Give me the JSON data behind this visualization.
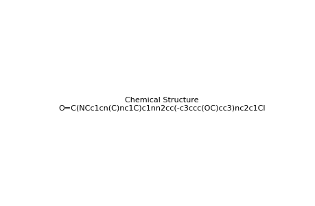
{
  "smiles": "O=C(NCc1cn(C)nc1C)c1nn2cc(-c3ccc(OC)cc3)nc2c1Cl",
  "title": "",
  "bg_color": "#ffffff",
  "line_color": "#000000",
  "figsize": [
    4.6,
    3.0
  ],
  "dpi": 100
}
